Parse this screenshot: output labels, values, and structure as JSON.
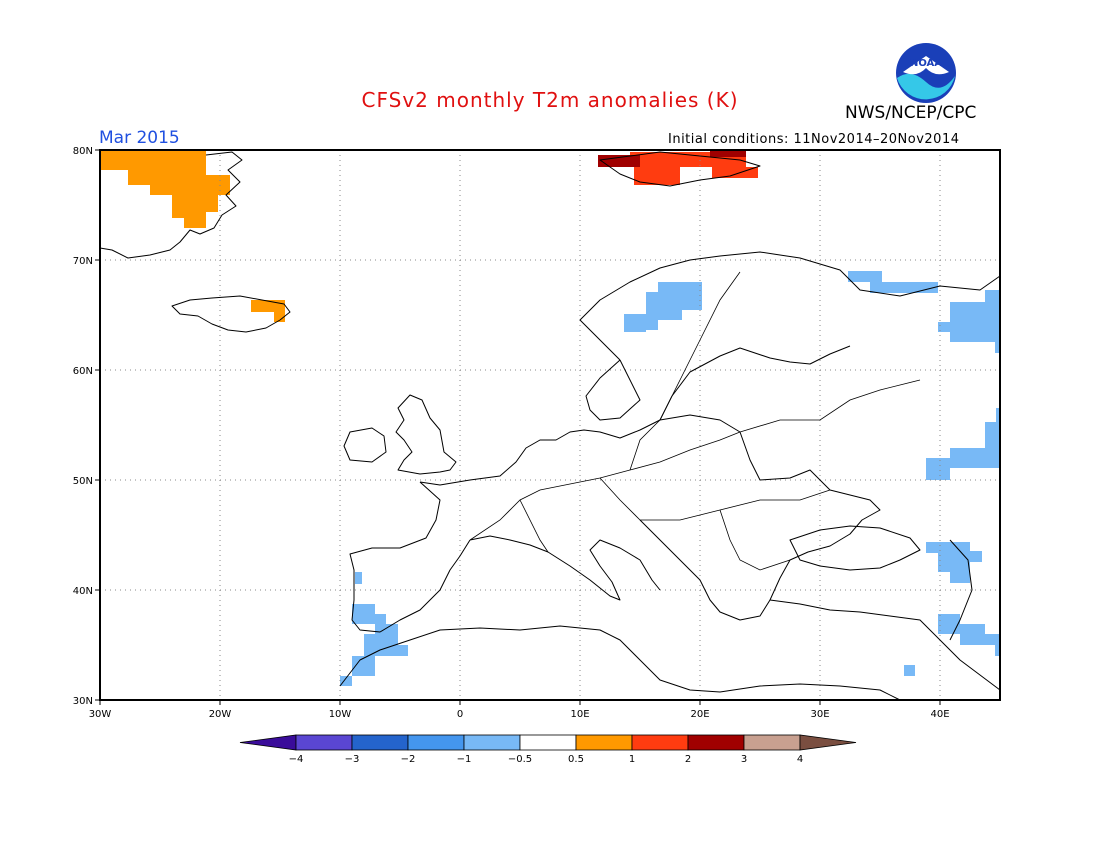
{
  "header": {
    "title": "CFSv2 monthly T2m anomalies (K)",
    "organization": "NWS/NCEP/CPC",
    "logo_text": "NOAA",
    "month": "Mar 2015",
    "initial_conditions": "Initial conditions: 11Nov2014–20Nov2014"
  },
  "map": {
    "lon_range": [
      -30,
      45
    ],
    "lat_range": [
      30,
      80
    ],
    "lon_ticks": [
      "30W",
      "20W",
      "10W",
      "0",
      "10E",
      "20E",
      "30E",
      "40E"
    ],
    "lat_ticks": [
      "80N",
      "70N",
      "60N",
      "50N",
      "40N",
      "30N"
    ]
  },
  "colorbar": {
    "labels": [
      "−4",
      "−3",
      "−2",
      "−1",
      "−0.5",
      "0.5",
      "1",
      "2",
      "3",
      "4"
    ],
    "colors": [
      "#3a0c9a",
      "#5a46d2",
      "#2464cc",
      "#4496ee",
      "#78b9f6",
      "#ffffff",
      "#ff9900",
      "#ff3c10",
      "#a00000",
      "#c8a090",
      "#7a4e40"
    ]
  },
  "anomaly_colors": {
    "light_blue": "#78b9f6",
    "orange": "#ff9900",
    "red": "#ff3c10",
    "dark_red": "#a00000"
  }
}
